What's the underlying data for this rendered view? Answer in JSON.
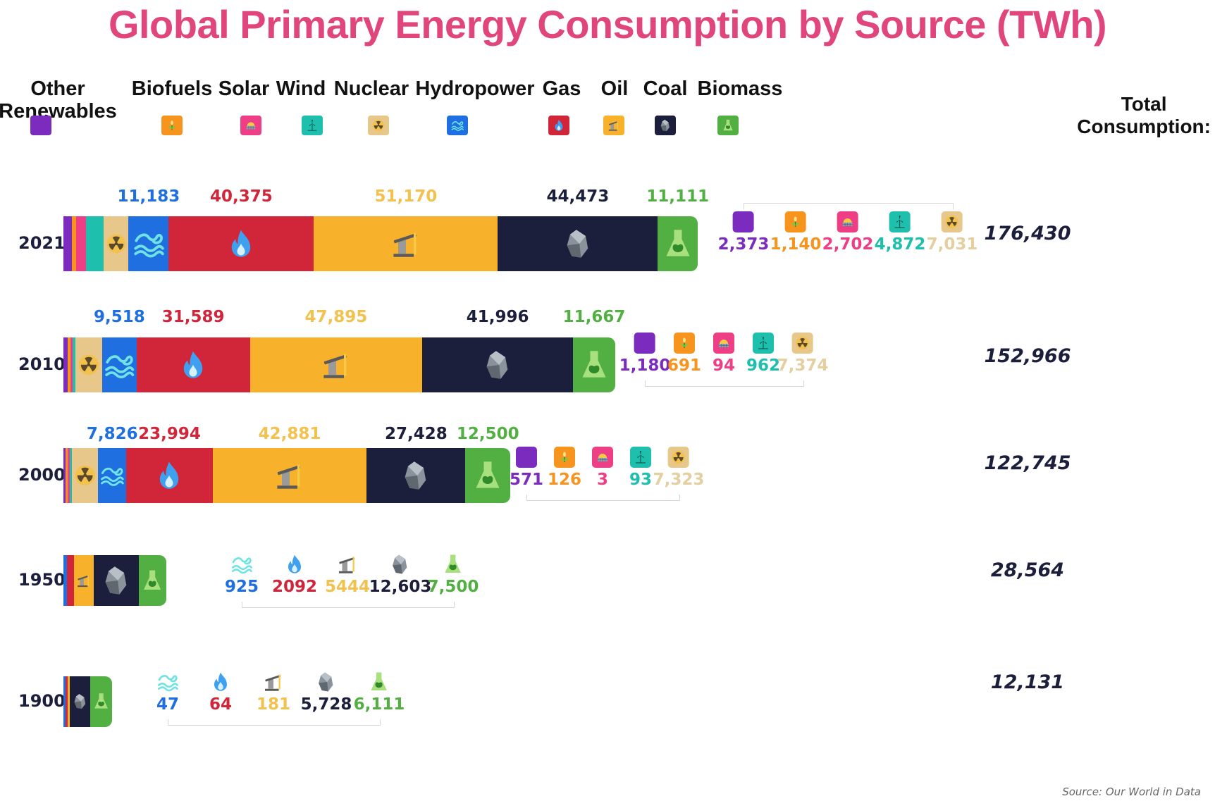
{
  "title": "Global Primary Energy Consumption by Source (TWh)",
  "source": "Source: Our World in Data",
  "total_header": "Total\nConsumption:",
  "colors": {
    "title": "#e0457b",
    "other_renewables": "#7b2cbf",
    "biofuels": "#f7941d",
    "solar": "#ee3f86",
    "wind": "#1fbfad",
    "nuclear": "#e8c88a",
    "hydropower": "#1f6fe0",
    "gas": "#d1253a",
    "oil": "#f7b12b",
    "coal": "#1b1f3b",
    "biomass": "#52b043"
  },
  "legend": [
    {
      "key": "other_renewables",
      "label": "Other\nRenewables",
      "icon": "square-icon"
    },
    {
      "key": "biofuels",
      "label": "Biofuels",
      "icon": "plant-icon"
    },
    {
      "key": "solar",
      "label": "Solar",
      "icon": "sun-panel-icon"
    },
    {
      "key": "wind",
      "label": "Wind",
      "icon": "wind-turbine-icon"
    },
    {
      "key": "nuclear",
      "label": "Nuclear",
      "icon": "radiation-icon"
    },
    {
      "key": "hydropower",
      "label": "Hydropower",
      "icon": "wave-icon"
    },
    {
      "key": "gas",
      "label": "Gas",
      "icon": "flame-icon"
    },
    {
      "key": "oil",
      "label": "Oil",
      "icon": "oil-pump-icon"
    },
    {
      "key": "coal",
      "label": "Coal",
      "icon": "coal-rock-icon"
    },
    {
      "key": "biomass",
      "label": "Biomass",
      "icon": "flask-leaf-icon"
    }
  ],
  "chart_data": {
    "type": "bar",
    "orientation": "horizontal-stacked",
    "title": "Global Primary Energy Consumption by Source (TWh)",
    "unit": "TWh",
    "categories": [
      "2021",
      "2010",
      "2000",
      "1950",
      "1900"
    ],
    "series": [
      {
        "name": "Other Renewables",
        "key": "other_renewables",
        "values": [
          2373,
          1180,
          571,
          0,
          0
        ]
      },
      {
        "name": "Biofuels",
        "key": "biofuels",
        "values": [
          1140,
          691,
          126,
          0,
          0
        ]
      },
      {
        "name": "Solar",
        "key": "solar",
        "values": [
          2702,
          94,
          3,
          0,
          0
        ]
      },
      {
        "name": "Wind",
        "key": "wind",
        "values": [
          4872,
          962,
          93,
          0,
          0
        ]
      },
      {
        "name": "Nuclear",
        "key": "nuclear",
        "values": [
          7031,
          7374,
          7323,
          0,
          0
        ]
      },
      {
        "name": "Hydropower",
        "key": "hydropower",
        "values": [
          11183,
          9518,
          7826,
          925,
          47
        ]
      },
      {
        "name": "Gas",
        "key": "gas",
        "values": [
          40375,
          31589,
          23994,
          2092,
          64
        ]
      },
      {
        "name": "Oil",
        "key": "oil",
        "values": [
          51170,
          47895,
          42881,
          5444,
          181
        ]
      },
      {
        "name": "Coal",
        "key": "coal",
        "values": [
          44473,
          41996,
          27428,
          12603,
          5728
        ]
      },
      {
        "name": "Biomass",
        "key": "biomass",
        "values": [
          11111,
          11667,
          12500,
          7500,
          6111
        ]
      }
    ],
    "totals": [
      176430,
      152966,
      122745,
      28564,
      12131
    ],
    "rows": [
      {
        "year": "2021",
        "total_label": "176,430",
        "above_labels": [
          {
            "key": "hydropower",
            "text": "11,183"
          },
          {
            "key": "gas",
            "text": "40,375"
          },
          {
            "key": "oil",
            "text": "51,170"
          },
          {
            "key": "coal",
            "text": "44,473"
          },
          {
            "key": "biomass",
            "text": "11,111"
          }
        ],
        "side_labels": [
          {
            "key": "other_renewables",
            "text": "2,373"
          },
          {
            "key": "biofuels",
            "text": "1,140"
          },
          {
            "key": "solar",
            "text": "2,702"
          },
          {
            "key": "wind",
            "text": "4,872"
          },
          {
            "key": "nuclear",
            "text": "7,031"
          }
        ]
      },
      {
        "year": "2010",
        "total_label": "152,966",
        "above_labels": [
          {
            "key": "hydropower",
            "text": "9,518"
          },
          {
            "key": "gas",
            "text": "31,589"
          },
          {
            "key": "oil",
            "text": "47,895"
          },
          {
            "key": "coal",
            "text": "41,996"
          },
          {
            "key": "biomass",
            "text": "11,667"
          }
        ],
        "side_labels": [
          {
            "key": "other_renewables",
            "text": "1,180"
          },
          {
            "key": "biofuels",
            "text": "691"
          },
          {
            "key": "solar",
            "text": "94"
          },
          {
            "key": "wind",
            "text": "962"
          },
          {
            "key": "nuclear",
            "text": "7,374"
          }
        ]
      },
      {
        "year": "2000",
        "total_label": "122,745",
        "above_labels": [
          {
            "key": "hydropower",
            "text": "7,826"
          },
          {
            "key": "gas",
            "text": "23,994"
          },
          {
            "key": "oil",
            "text": "42,881"
          },
          {
            "key": "coal",
            "text": "27,428"
          },
          {
            "key": "biomass",
            "text": "12,500"
          }
        ],
        "side_labels": [
          {
            "key": "other_renewables",
            "text": "571"
          },
          {
            "key": "biofuels",
            "text": "126"
          },
          {
            "key": "solar",
            "text": "3"
          },
          {
            "key": "wind",
            "text": "93"
          },
          {
            "key": "nuclear",
            "text": "7,323"
          }
        ]
      },
      {
        "year": "1950",
        "total_label": "28,564",
        "above_labels": [],
        "side_labels": [
          {
            "key": "hydropower",
            "text": "925"
          },
          {
            "key": "gas",
            "text": "2092"
          },
          {
            "key": "oil",
            "text": "5444"
          },
          {
            "key": "coal",
            "text": "12,603"
          },
          {
            "key": "biomass",
            "text": "7,500"
          }
        ]
      },
      {
        "year": "1900",
        "total_label": "12,131",
        "above_labels": [],
        "side_labels": [
          {
            "key": "hydropower",
            "text": "47"
          },
          {
            "key": "gas",
            "text": "64"
          },
          {
            "key": "oil",
            "text": "181"
          },
          {
            "key": "coal",
            "text": "5,728"
          },
          {
            "key": "biomass",
            "text": "6,111"
          }
        ]
      }
    ]
  }
}
